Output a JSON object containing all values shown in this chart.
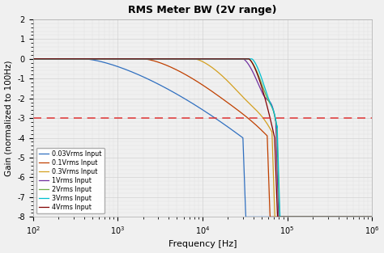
{
  "title": "RMS Meter BW (2V range)",
  "xlabel": "Frequency [Hz]",
  "ylabel": "Gain (normalized to 100Hz)",
  "xlim": [
    100,
    1000000
  ],
  "ylim": [
    -8,
    2
  ],
  "yticks": [
    2,
    1,
    0,
    -1,
    -2,
    -3,
    -4,
    -5,
    -6,
    -7,
    -8
  ],
  "dashed_line_y": -3,
  "bg_color": "#f0f0f0",
  "curve_params": [
    {
      "label": "0.03Vrms Input",
      "color": "#3070C0",
      "rolloff_start": 400,
      "peak_freq": 28000,
      "peak_gain": 0.0,
      "cutoff_freq": 30000,
      "steepness": 2.5
    },
    {
      "label": "0.1Vrms Input",
      "color": "#C04000",
      "rolloff_start": 2000,
      "peak_freq": 55000,
      "peak_gain": 0.12,
      "cutoff_freq": 58000,
      "steepness": 2.5
    },
    {
      "label": "0.3Vrms Input",
      "color": "#D4A020",
      "rolloff_start": 8000,
      "peak_freq": 62000,
      "peak_gain": 0.35,
      "cutoff_freq": 66000,
      "steepness": 2.5
    },
    {
      "label": "1Vrms Input",
      "color": "#7030A0",
      "rolloff_start": 30000,
      "peak_freq": 70000,
      "peak_gain": 1.0,
      "cutoff_freq": 73000,
      "steepness": 3.0
    },
    {
      "label": "2Vrms Input",
      "color": "#70AD47",
      "rolloff_start": 35000,
      "peak_freq": 72000,
      "peak_gain": 0.7,
      "cutoff_freq": 75000,
      "steepness": 3.0
    },
    {
      "label": "3Vrms Input",
      "color": "#00BFCF",
      "rolloff_start": 38000,
      "peak_freq": 73000,
      "peak_gain": 0.6,
      "cutoff_freq": 76000,
      "steepness": 3.0
    },
    {
      "label": "4Vrms Input",
      "color": "#800000",
      "rolloff_start": 35000,
      "peak_freq": 68000,
      "peak_gain": 0.0,
      "cutoff_freq": 71000,
      "steepness": 3.0
    }
  ]
}
